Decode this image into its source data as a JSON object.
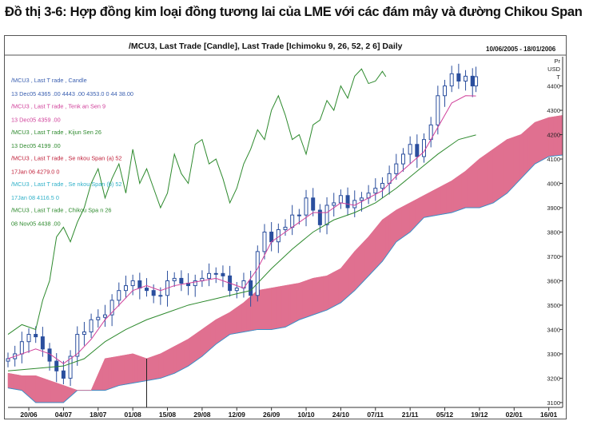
{
  "figure_title": "Đồ thị 3-6: Hợp đồng kim loại đồng tương lai của LME với các đám mây và đường Chikou Span",
  "chart_header": "/MCU3, Last Trade [Candle], Last Trade [Ichimoku 9, 26, 52, 2 6] Daily",
  "date_range": "10/06/2005 - 18/01/2006",
  "unit_label": [
    "Pr",
    "USD",
    "T"
  ],
  "legend": [
    {
      "name": "/MCU3 , Last T rade , Candle",
      "values": "13 Dec05 4365 .00 4443 .00 4353.0 0 44 38.00",
      "color": "#3a5fb0"
    },
    {
      "name": "/MCU3 , Last T rade , Tenk an Sen 9",
      "values": "13 Dec05 4359 .00",
      "color": "#d0409a"
    },
    {
      "name": "/MCU3 , Last T rade , Kijun Sen 26",
      "values": "13 Dec05 4199 .00",
      "color": "#2e8a2e"
    },
    {
      "name": "/MCU3 , Last T rade , Se nkou Span (a) 52",
      "values": "17Jan 06 4279.0 0",
      "color": "#c0203a"
    },
    {
      "name": "/MCU3 , Last T rade , Se nkou Span (b) 52",
      "values": "17Jan 08 4116.5 0",
      "color": "#2fb0c8"
    },
    {
      "name": "/MCU3 , Last T rade , Chikou Spa n 26",
      "values": "08 Nov05 4438 .00",
      "color": "#2e8a2e"
    }
  ],
  "colors": {
    "candle": "#2b4f9e",
    "tenkan": "#d0409a",
    "kijun": "#2e8a2e",
    "chikou": "#2e8a2e",
    "cloud_bull": "#e07090",
    "cloud_bear": "#4cc4cc",
    "span_b_line": "#3a8fc8",
    "axis": "#333333"
  },
  "chart_data": {
    "type": "candlestick",
    "title": "/MCU3, Last Trade [Candle], Last Trade [Ichimoku 9, 26, 52, 2 6] Daily",
    "ylim": [
      3080,
      4520
    ],
    "y_ticks": [
      3100,
      3200,
      3300,
      3400,
      3500,
      3600,
      3700,
      3800,
      3900,
      4000,
      4100,
      4200,
      4300,
      4400
    ],
    "x_range": [
      0,
      160
    ],
    "x_ticks": [
      {
        "label": "20/06",
        "x": 6
      },
      {
        "label": "04/07",
        "x": 16
      },
      {
        "label": "18/07",
        "x": 26
      },
      {
        "label": "01/08",
        "x": 36
      },
      {
        "label": "15/08",
        "x": 46
      },
      {
        "label": "29/08",
        "x": 56
      },
      {
        "label": "12/09",
        "x": 66
      },
      {
        "label": "26/09",
        "x": 76
      },
      {
        "label": "10/10",
        "x": 86
      },
      {
        "label": "24/10",
        "x": 96
      },
      {
        "label": "07/11",
        "x": 106
      },
      {
        "label": "21/11",
        "x": 116
      },
      {
        "label": "05/12",
        "x": 126
      },
      {
        "label": "19/12",
        "x": 136
      },
      {
        "label": "02/01",
        "x": 146
      },
      {
        "label": "16/01",
        "x": 156
      }
    ],
    "marker_x": 40,
    "price_close": [
      [
        0,
        3280
      ],
      [
        2,
        3300
      ],
      [
        4,
        3350
      ],
      [
        6,
        3380
      ],
      [
        8,
        3370
      ],
      [
        10,
        3320
      ],
      [
        12,
        3270
      ],
      [
        14,
        3230
      ],
      [
        16,
        3200
      ],
      [
        18,
        3290
      ],
      [
        20,
        3380
      ],
      [
        22,
        3390
      ],
      [
        24,
        3440
      ],
      [
        26,
        3450
      ],
      [
        28,
        3460
      ],
      [
        30,
        3520
      ],
      [
        32,
        3560
      ],
      [
        34,
        3580
      ],
      [
        36,
        3600
      ],
      [
        38,
        3570
      ],
      [
        40,
        3560
      ],
      [
        42,
        3540
      ],
      [
        44,
        3540
      ],
      [
        46,
        3600
      ],
      [
        48,
        3610
      ],
      [
        50,
        3590
      ],
      [
        52,
        3580
      ],
      [
        54,
        3600
      ],
      [
        56,
        3610
      ],
      [
        58,
        3630
      ],
      [
        60,
        3630
      ],
      [
        62,
        3620
      ],
      [
        64,
        3560
      ],
      [
        66,
        3570
      ],
      [
        68,
        3600
      ],
      [
        70,
        3540
      ],
      [
        72,
        3720
      ],
      [
        74,
        3800
      ],
      [
        76,
        3760
      ],
      [
        78,
        3810
      ],
      [
        80,
        3820
      ],
      [
        82,
        3870
      ],
      [
        84,
        3870
      ],
      [
        86,
        3940
      ],
      [
        88,
        3890
      ],
      [
        90,
        3830
      ],
      [
        92,
        3910
      ],
      [
        94,
        3920
      ],
      [
        96,
        3950
      ],
      [
        98,
        3900
      ],
      [
        100,
        3930
      ],
      [
        102,
        3940
      ],
      [
        104,
        3960
      ],
      [
        106,
        3980
      ],
      [
        108,
        4000
      ],
      [
        110,
        4040
      ],
      [
        112,
        4080
      ],
      [
        114,
        4120
      ],
      [
        116,
        4160
      ],
      [
        118,
        4110
      ],
      [
        120,
        4180
      ],
      [
        122,
        4240
      ],
      [
        124,
        4360
      ],
      [
        126,
        4400
      ],
      [
        128,
        4450
      ],
      [
        130,
        4420
      ],
      [
        132,
        4440
      ],
      [
        134,
        4400
      ],
      [
        135,
        4438
      ]
    ],
    "tenkan_sen": [
      [
        0,
        3280
      ],
      [
        4,
        3300
      ],
      [
        8,
        3320
      ],
      [
        12,
        3300
      ],
      [
        16,
        3260
      ],
      [
        20,
        3300
      ],
      [
        24,
        3360
      ],
      [
        28,
        3440
      ],
      [
        32,
        3500
      ],
      [
        36,
        3560
      ],
      [
        40,
        3580
      ],
      [
        44,
        3560
      ],
      [
        48,
        3580
      ],
      [
        52,
        3590
      ],
      [
        56,
        3600
      ],
      [
        60,
        3610
      ],
      [
        64,
        3590
      ],
      [
        68,
        3570
      ],
      [
        72,
        3650
      ],
      [
        76,
        3760
      ],
      [
        80,
        3800
      ],
      [
        84,
        3840
      ],
      [
        88,
        3880
      ],
      [
        92,
        3880
      ],
      [
        96,
        3920
      ],
      [
        100,
        3910
      ],
      [
        104,
        3940
      ],
      [
        108,
        3970
      ],
      [
        112,
        4030
      ],
      [
        116,
        4080
      ],
      [
        120,
        4130
      ],
      [
        124,
        4230
      ],
      [
        128,
        4330
      ],
      [
        132,
        4360
      ],
      [
        135,
        4359
      ]
    ],
    "kijun_sen": [
      [
        0,
        3230
      ],
      [
        8,
        3240
      ],
      [
        16,
        3250
      ],
      [
        22,
        3280
      ],
      [
        28,
        3350
      ],
      [
        34,
        3400
      ],
      [
        40,
        3440
      ],
      [
        46,
        3470
      ],
      [
        52,
        3500
      ],
      [
        58,
        3520
      ],
      [
        64,
        3540
      ],
      [
        70,
        3560
      ],
      [
        76,
        3650
      ],
      [
        82,
        3730
      ],
      [
        88,
        3800
      ],
      [
        94,
        3850
      ],
      [
        100,
        3880
      ],
      [
        106,
        3920
      ],
      [
        112,
        3980
      ],
      [
        118,
        4050
      ],
      [
        124,
        4120
      ],
      [
        130,
        4180
      ],
      [
        135,
        4199
      ]
    ],
    "chikou_span": [
      [
        0,
        3380
      ],
      [
        4,
        3420
      ],
      [
        8,
        3400
      ],
      [
        10,
        3520
      ],
      [
        12,
        3600
      ],
      [
        14,
        3780
      ],
      [
        16,
        3820
      ],
      [
        18,
        3760
      ],
      [
        20,
        3840
      ],
      [
        22,
        3900
      ],
      [
        24,
        4000
      ],
      [
        26,
        4060
      ],
      [
        28,
        3940
      ],
      [
        30,
        4020
      ],
      [
        32,
        4080
      ],
      [
        34,
        3960
      ],
      [
        36,
        4140
      ],
      [
        38,
        4000
      ],
      [
        40,
        4060
      ],
      [
        42,
        3980
      ],
      [
        44,
        3900
      ],
      [
        46,
        3960
      ],
      [
        48,
        4120
      ],
      [
        50,
        4040
      ],
      [
        52,
        4000
      ],
      [
        54,
        4160
      ],
      [
        56,
        4180
      ],
      [
        58,
        4080
      ],
      [
        60,
        4100
      ],
      [
        62,
        4020
      ],
      [
        64,
        3920
      ],
      [
        66,
        3980
      ],
      [
        68,
        4080
      ],
      [
        70,
        4140
      ],
      [
        72,
        4220
      ],
      [
        74,
        4180
      ],
      [
        76,
        4300
      ],
      [
        78,
        4360
      ],
      [
        80,
        4280
      ],
      [
        82,
        4180
      ],
      [
        84,
        4200
      ],
      [
        86,
        4120
      ],
      [
        88,
        4240
      ],
      [
        90,
        4260
      ],
      [
        92,
        4340
      ],
      [
        94,
        4300
      ],
      [
        96,
        4400
      ],
      [
        98,
        4350
      ],
      [
        100,
        4440
      ],
      [
        102,
        4470
      ],
      [
        104,
        4410
      ],
      [
        106,
        4420
      ],
      [
        108,
        4460
      ],
      [
        109,
        4438
      ]
    ],
    "senkou_span_a": [
      [
        0,
        3220
      ],
      [
        4,
        3210
      ],
      [
        8,
        3210
      ],
      [
        12,
        3190
      ],
      [
        16,
        3170
      ],
      [
        20,
        3150
      ],
      [
        24,
        3150
      ],
      [
        28,
        3280
      ],
      [
        32,
        3290
      ],
      [
        36,
        3300
      ],
      [
        40,
        3280
      ],
      [
        44,
        3300
      ],
      [
        48,
        3330
      ],
      [
        52,
        3360
      ],
      [
        56,
        3400
      ],
      [
        60,
        3440
      ],
      [
        64,
        3470
      ],
      [
        68,
        3510
      ],
      [
        72,
        3560
      ],
      [
        76,
        3570
      ],
      [
        80,
        3580
      ],
      [
        84,
        3590
      ],
      [
        88,
        3610
      ],
      [
        92,
        3620
      ],
      [
        96,
        3650
      ],
      [
        100,
        3720
      ],
      [
        104,
        3780
      ],
      [
        108,
        3850
      ],
      [
        112,
        3890
      ],
      [
        116,
        3920
      ],
      [
        120,
        3950
      ],
      [
        124,
        3980
      ],
      [
        128,
        4010
      ],
      [
        132,
        4050
      ],
      [
        136,
        4100
      ],
      [
        140,
        4140
      ],
      [
        144,
        4180
      ],
      [
        148,
        4200
      ],
      [
        152,
        4250
      ],
      [
        156,
        4270
      ],
      [
        160,
        4279
      ]
    ],
    "senkou_span_b": [
      [
        0,
        3160
      ],
      [
        4,
        3150
      ],
      [
        8,
        3100
      ],
      [
        12,
        3100
      ],
      [
        16,
        3100
      ],
      [
        20,
        3150
      ],
      [
        24,
        3150
      ],
      [
        28,
        3150
      ],
      [
        32,
        3170
      ],
      [
        36,
        3180
      ],
      [
        40,
        3190
      ],
      [
        44,
        3200
      ],
      [
        48,
        3220
      ],
      [
        52,
        3250
      ],
      [
        56,
        3290
      ],
      [
        60,
        3340
      ],
      [
        64,
        3380
      ],
      [
        68,
        3390
      ],
      [
        72,
        3400
      ],
      [
        76,
        3400
      ],
      [
        80,
        3410
      ],
      [
        84,
        3440
      ],
      [
        88,
        3460
      ],
      [
        92,
        3480
      ],
      [
        96,
        3510
      ],
      [
        100,
        3560
      ],
      [
        104,
        3620
      ],
      [
        108,
        3680
      ],
      [
        112,
        3760
      ],
      [
        116,
        3800
      ],
      [
        120,
        3860
      ],
      [
        124,
        3870
      ],
      [
        128,
        3880
      ],
      [
        132,
        3900
      ],
      [
        136,
        3900
      ],
      [
        140,
        3920
      ],
      [
        144,
        3960
      ],
      [
        148,
        4020
      ],
      [
        152,
        4080
      ],
      [
        156,
        4110
      ],
      [
        160,
        4116.5
      ]
    ]
  }
}
